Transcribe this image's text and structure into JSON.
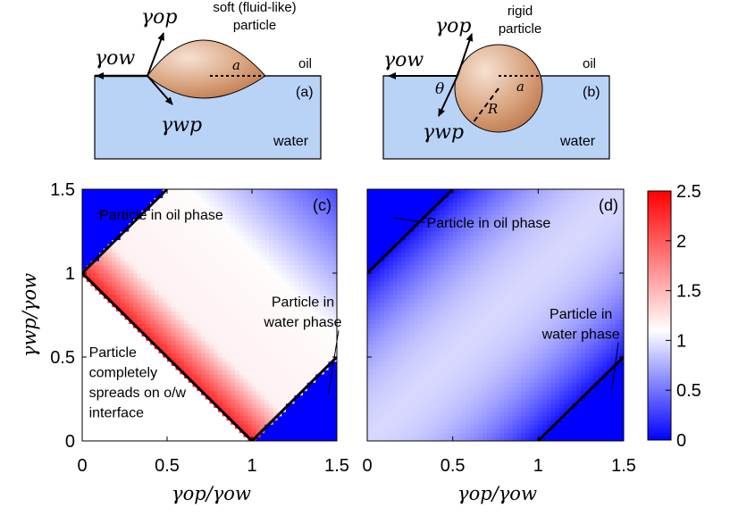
{
  "panel_a": {
    "label": "(a)",
    "title_line1": "soft (fluid-like)",
    "title_line2": "particle",
    "gamma_op": "γop",
    "gamma_ow": "γow",
    "gamma_wp": "γwp",
    "radius_label": "a",
    "oil_label": "oil",
    "water_label": "water"
  },
  "panel_b": {
    "label": "(b)",
    "title_line1": "rigid",
    "title_line2": "particle",
    "gamma_op": "γop",
    "gamma_ow": "γow",
    "gamma_wp": "γwp",
    "theta_label": "θ",
    "radius_a_label": "a",
    "radius_R_label": "R",
    "oil_label": "oil",
    "water_label": "water"
  },
  "colors": {
    "oil_bg": "#ffffff",
    "water": "#b9d3f7",
    "particle": "#d4956a",
    "particle_highlight": "#f6e1d2",
    "cmap_low": "#0000ff",
    "cmap_mid": "#ffffff",
    "cmap_high": "#ff0000"
  },
  "chart_data": [
    {
      "type": "heatmap",
      "panel_label": "(c)",
      "xlabel": "γop/γow",
      "ylabel": "γwp/γow",
      "xlim": [
        0,
        1.5
      ],
      "ylim": [
        0,
        1.5
      ],
      "xticks": [
        "0",
        "0.5",
        "1",
        "1.5"
      ],
      "yticks": [
        "0",
        "0.5",
        "1",
        "1.5"
      ],
      "boundary_lines": [
        {
          "from": [
            0,
            1
          ],
          "to": [
            0.5,
            1.5
          ]
        },
        {
          "from": [
            0,
            1
          ],
          "to": [
            1,
            0
          ]
        },
        {
          "from": [
            1,
            0
          ],
          "to": [
            1.5,
            0.5
          ]
        }
      ],
      "annotations": [
        {
          "text": "Particle in oil phase",
          "at": [
            0.3,
            1.32
          ],
          "arrow_to": [
            0.13,
            1.37
          ]
        },
        {
          "text": "Particle in",
          "at": [
            1.3,
            0.8
          ]
        },
        {
          "text": "water phase",
          "at": [
            1.3,
            0.68
          ],
          "arrow_to": [
            1.45,
            0.28
          ]
        },
        {
          "text": "Particle",
          "at": [
            0.04,
            0.5
          ]
        },
        {
          "text": "completely",
          "at": [
            0.04,
            0.38
          ]
        },
        {
          "text": "spreads on o/w",
          "at": [
            0.04,
            0.26
          ]
        },
        {
          "text": "interface",
          "at": [
            0.04,
            0.14
          ]
        }
      ]
    },
    {
      "type": "heatmap",
      "panel_label": "(d)",
      "xlabel": "γop/γow",
      "xlim": [
        0,
        1.5
      ],
      "ylim": [
        0,
        1.5
      ],
      "xticks": [
        "0",
        "0.5",
        "1",
        "1.5"
      ],
      "boundary_lines": [
        {
          "from": [
            0,
            1
          ],
          "to": [
            0.5,
            1.5
          ]
        },
        {
          "from": [
            1,
            0
          ],
          "to": [
            1.5,
            0.5
          ]
        }
      ],
      "annotations": [
        {
          "text": "Particle in oil phase",
          "at": [
            0.4,
            1.27
          ],
          "arrow_to": [
            0.15,
            1.33
          ]
        },
        {
          "text": "Particle in",
          "at": [
            1.25,
            0.73
          ]
        },
        {
          "text": "water phase",
          "at": [
            1.25,
            0.61
          ],
          "arrow_to": [
            1.43,
            0.3
          ]
        }
      ]
    }
  ],
  "colorbar": {
    "ticks": [
      "0",
      "0.5",
      "1",
      "1.5",
      "2",
      "2.5"
    ],
    "range": [
      0,
      2.5
    ]
  }
}
